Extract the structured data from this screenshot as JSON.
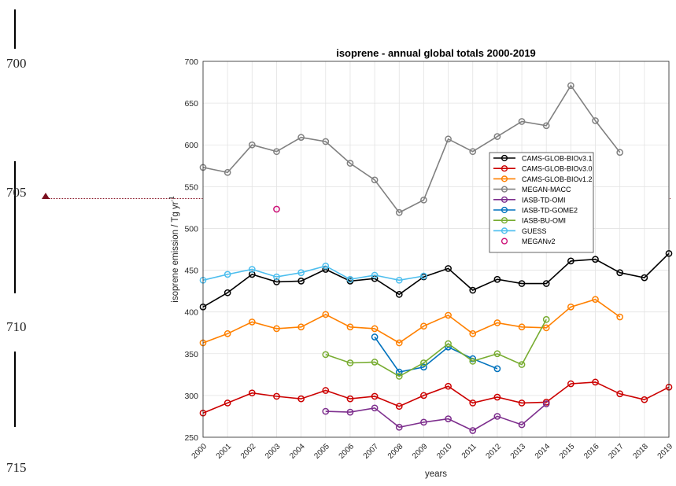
{
  "margin": {
    "line_numbers": [
      "700",
      "705",
      "710",
      "715"
    ]
  },
  "chart_data": {
    "type": "line",
    "title": "isoprene - annual global totals 2000-2019",
    "xlabel": "years",
    "ylabel": "isoprene emission / Tg yr",
    "ylabel_sup": "-1",
    "xlim": [
      2000,
      2019
    ],
    "ylim": [
      250,
      700
    ],
    "yticks": [
      250,
      300,
      350,
      400,
      450,
      500,
      550,
      600,
      650,
      700
    ],
    "xticks": [
      "2000",
      "2001",
      "2002",
      "2003",
      "2004",
      "2005",
      "2006",
      "2007",
      "2008",
      "2009",
      "2010",
      "2011",
      "2012",
      "2013",
      "2014",
      "2015",
      "2016",
      "2017",
      "2018",
      "2019"
    ],
    "grid": true,
    "legend_position": "right-center",
    "series": [
      {
        "name": "CAMS-GLOB-BIOv3.1",
        "color": "#000000",
        "x": [
          2000,
          2001,
          2002,
          2003,
          2004,
          2005,
          2006,
          2007,
          2008,
          2009,
          2010,
          2011,
          2012,
          2013,
          2014,
          2015,
          2016,
          2017,
          2018,
          2019
        ],
        "y": [
          406,
          423,
          445,
          436,
          437,
          451,
          437,
          440,
          421,
          442,
          452,
          426,
          439,
          434,
          434,
          461,
          463,
          447,
          441,
          470
        ]
      },
      {
        "name": "CAMS-GLOB-BIOv3.0",
        "color": "#cc0000",
        "x": [
          2000,
          2001,
          2002,
          2003,
          2004,
          2005,
          2006,
          2007,
          2008,
          2009,
          2010,
          2011,
          2012,
          2013,
          2014,
          2015,
          2016,
          2017,
          2018,
          2019
        ],
        "y": [
          279,
          291,
          303,
          299,
          296,
          306,
          296,
          299,
          287,
          300,
          311,
          291,
          298,
          291,
          292,
          314,
          316,
          302,
          295,
          310
        ]
      },
      {
        "name": "CAMS-GLOB-BIOv1.2",
        "color": "#ff8000",
        "x": [
          2000,
          2001,
          2002,
          2003,
          2004,
          2005,
          2006,
          2007,
          2008,
          2009,
          2010,
          2011,
          2012,
          2013,
          2014,
          2015,
          2016,
          2017
        ],
        "y": [
          363,
          374,
          388,
          380,
          382,
          397,
          382,
          380,
          363,
          383,
          396,
          374,
          387,
          382,
          381,
          406,
          415,
          394
        ]
      },
      {
        "name": "MEGAN-MACC",
        "color": "#808080",
        "x": [
          2000,
          2001,
          2002,
          2003,
          2004,
          2005,
          2006,
          2007,
          2008,
          2009,
          2010,
          2011,
          2012,
          2013,
          2014,
          2015,
          2016,
          2017
        ],
        "y": [
          573,
          567,
          600,
          592,
          609,
          604,
          578,
          558,
          519,
          534,
          607,
          592,
          610,
          628,
          623,
          671,
          629,
          591
        ]
      },
      {
        "name": "IASB-TD-OMI",
        "color": "#7d2e8d",
        "x": [
          2005,
          2006,
          2007,
          2008,
          2009,
          2010,
          2011,
          2012,
          2013,
          2014
        ],
        "y": [
          281,
          280,
          285,
          262,
          268,
          272,
          258,
          275,
          265,
          290
        ]
      },
      {
        "name": "IASB-TD-GOME2",
        "color": "#0072bd",
        "x": [
          2007,
          2008,
          2009,
          2010,
          2011,
          2012
        ],
        "y": [
          370,
          328,
          334,
          358,
          344,
          332
        ]
      },
      {
        "name": "IASB-BU-OMI",
        "color": "#77ac30",
        "x": [
          2005,
          2006,
          2007,
          2008,
          2009,
          2010,
          2011,
          2012,
          2013,
          2014
        ],
        "y": [
          349,
          339,
          340,
          323,
          339,
          362,
          341,
          350,
          337,
          391
        ]
      },
      {
        "name": "GUESS",
        "color": "#4dbeee",
        "x": [
          2000,
          2001,
          2002,
          2003,
          2004,
          2005,
          2006,
          2007,
          2008,
          2009
        ],
        "y": [
          438,
          445,
          451,
          442,
          447,
          455,
          439,
          444,
          438,
          443
        ]
      },
      {
        "name": "MEGANv2",
        "color": "#cc1177",
        "marker_only": true,
        "x": [
          2003
        ],
        "y": [
          523
        ]
      }
    ]
  }
}
